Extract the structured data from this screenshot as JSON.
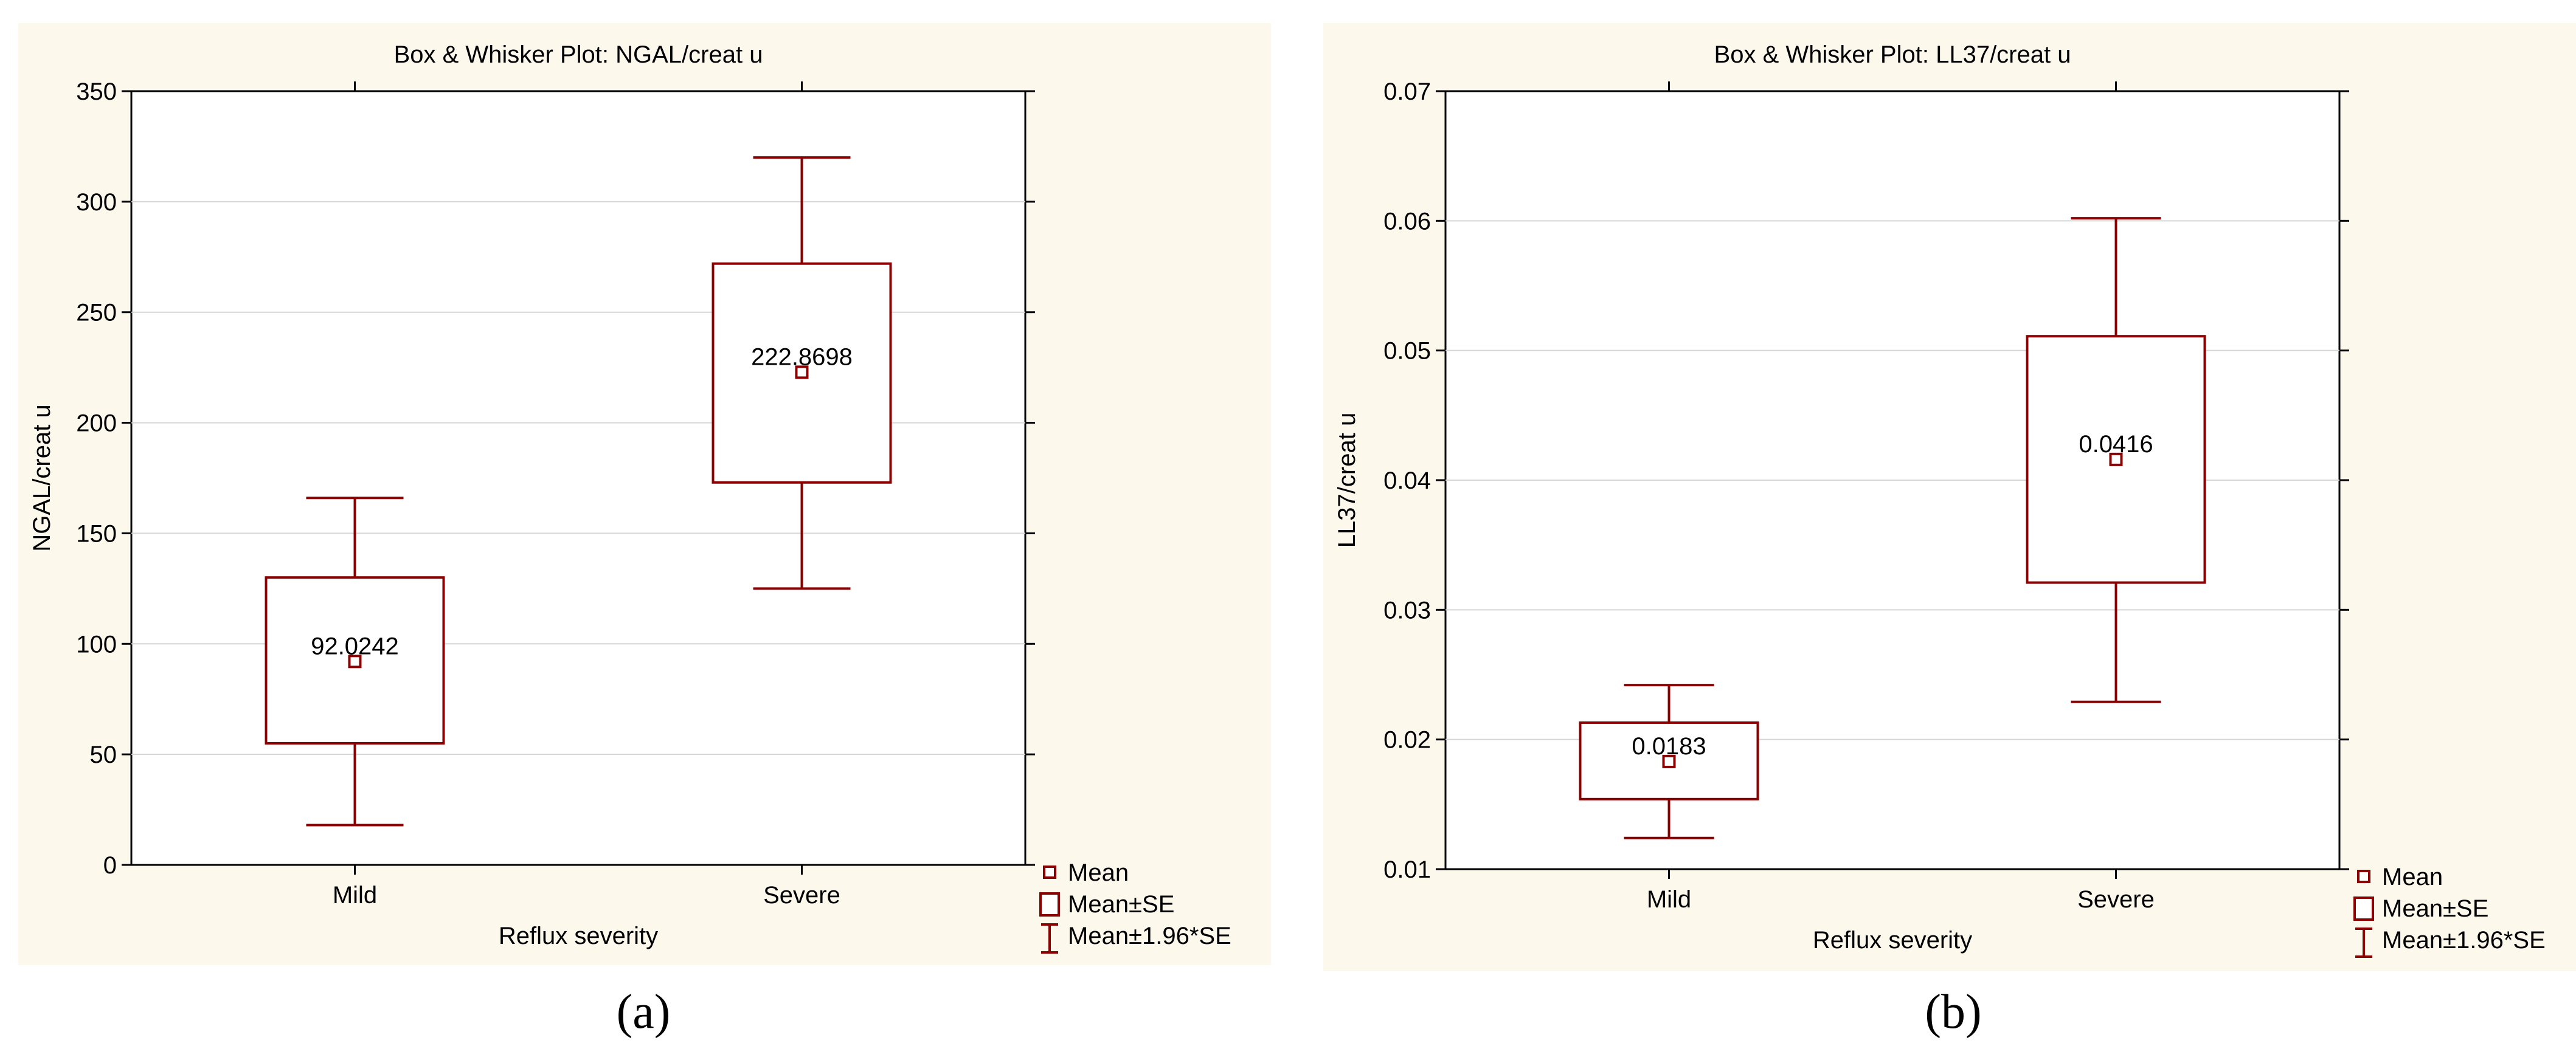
{
  "figure": {
    "captions": [
      "(a)",
      "(b)"
    ]
  },
  "colors": {
    "series": "#8b0000",
    "panel_background": "#fdf8ec",
    "grid": "#d6d6d6"
  },
  "chart_data": [
    {
      "type": "box",
      "title": "Box & Whisker Plot: NGAL/creat u",
      "xlabel": "Reflux severity",
      "ylabel": "NGAL/creat u",
      "ylim": [
        0,
        350
      ],
      "yticks": [
        0,
        50,
        100,
        150,
        200,
        250,
        300,
        350
      ],
      "ytick_labels": [
        "0",
        "50",
        "100",
        "150",
        "200",
        "250",
        "300",
        "350"
      ],
      "categories": [
        "Mild",
        "Severe"
      ],
      "series": [
        {
          "category": "Mild",
          "mean": 92.0242,
          "mean_label": "92.0242",
          "se_low": 55,
          "se_high": 130,
          "ci_low": 18,
          "ci_high": 166
        },
        {
          "category": "Severe",
          "mean": 222.8698,
          "mean_label": "222.8698",
          "se_low": 173,
          "se_high": 272,
          "ci_low": 125,
          "ci_high": 320
        }
      ],
      "legend": [
        "Mean",
        "Mean±SE",
        "Mean±1.96*SE"
      ]
    },
    {
      "type": "box",
      "title": "Box & Whisker Plot: LL37/creat u",
      "xlabel": "Reflux severity",
      "ylabel": "LL37/creat u",
      "ylim": [
        0.01,
        0.07
      ],
      "yticks": [
        0.01,
        0.02,
        0.03,
        0.04,
        0.05,
        0.06,
        0.07
      ],
      "ytick_labels": [
        "0.01",
        "0.02",
        "0.03",
        "0.04",
        "0.05",
        "0.06",
        "0.07"
      ],
      "categories": [
        "Mild",
        "Severe"
      ],
      "series": [
        {
          "category": "Mild",
          "mean": 0.0183,
          "mean_label": "0.0183",
          "se_low": 0.0154,
          "se_high": 0.0213,
          "ci_low": 0.0124,
          "ci_high": 0.0242
        },
        {
          "category": "Severe",
          "mean": 0.0416,
          "mean_label": "0.0416",
          "se_low": 0.0321,
          "se_high": 0.0511,
          "ci_low": 0.0229,
          "ci_high": 0.0602
        }
      ],
      "legend": [
        "Mean",
        "Mean±SE",
        "Mean±1.96*SE"
      ]
    }
  ]
}
